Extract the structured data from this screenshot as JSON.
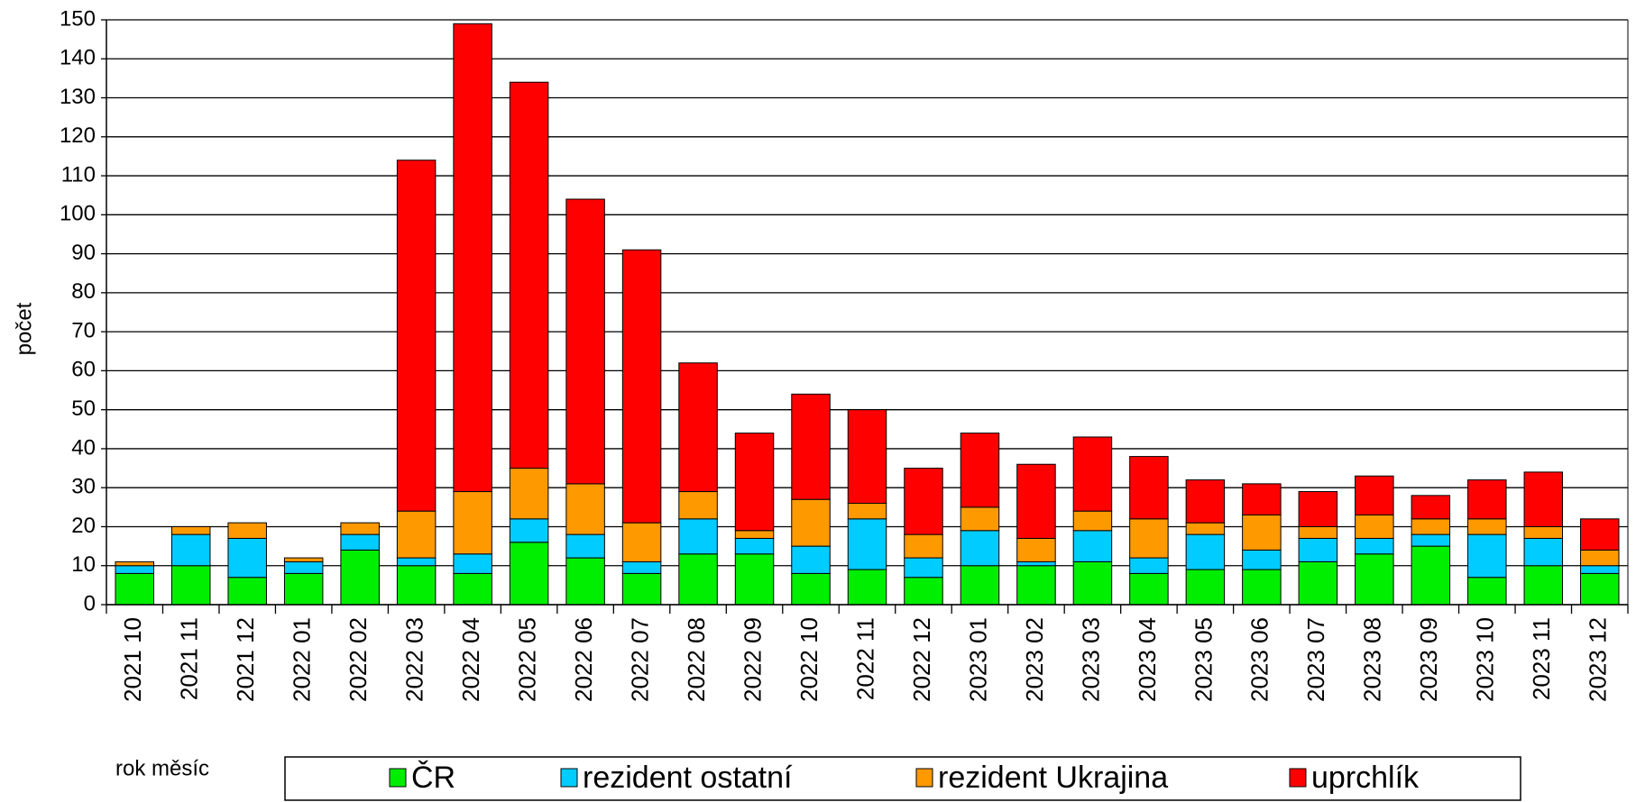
{
  "chart_data": {
    "type": "stacked_bar",
    "y_label": "počet",
    "x_label": "rok měsíc",
    "categories": [
      "2021 10",
      "2021 11",
      "2021 12",
      "2022 01",
      "2022 02",
      "2022 03",
      "2022 04",
      "2022 05",
      "2022 06",
      "2022 07",
      "2022 08",
      "2022 09",
      "2022 10",
      "2022 11",
      "2022 12",
      "2023 01",
      "2023 02",
      "2023 03",
      "2023 04",
      "2023 05",
      "2023 06",
      "2023 07",
      "2023 08",
      "2023 09",
      "2023 10",
      "2023 11",
      "2023 12"
    ],
    "series": [
      {
        "name": "ČR",
        "color": "#00ee00",
        "values": [
          8,
          10,
          7,
          8,
          14,
          10,
          8,
          16,
          12,
          8,
          13,
          13,
          8,
          9,
          7,
          10,
          10,
          11,
          8,
          9,
          9,
          11,
          13,
          15,
          7,
          10,
          8
        ]
      },
      {
        "name": "rezident ostatní",
        "color": "#00ccff",
        "values": [
          2,
          8,
          10,
          3,
          4,
          2,
          5,
          6,
          6,
          3,
          9,
          4,
          7,
          13,
          5,
          9,
          1,
          8,
          4,
          9,
          5,
          6,
          4,
          3,
          11,
          7,
          2
        ]
      },
      {
        "name": "rezident Ukrajina",
        "color": "#ff9900",
        "values": [
          1,
          2,
          4,
          1,
          3,
          12,
          16,
          13,
          13,
          10,
          7,
          2,
          12,
          4,
          6,
          6,
          6,
          5,
          10,
          3,
          9,
          3,
          6,
          4,
          4,
          3,
          4
        ]
      },
      {
        "name": "uprchlík",
        "color": "#ff0000",
        "values": [
          0,
          0,
          0,
          0,
          0,
          90,
          120,
          99,
          73,
          70,
          33,
          25,
          27,
          24,
          17,
          19,
          19,
          19,
          16,
          11,
          8,
          9,
          10,
          6,
          10,
          14,
          8
        ]
      }
    ],
    "ylim": [
      0,
      150
    ],
    "yticks": [
      0,
      10,
      20,
      30,
      40,
      50,
      60,
      70,
      80,
      90,
      100,
      110,
      120,
      130,
      140,
      150
    ],
    "grid": true,
    "legend": "bottom"
  }
}
